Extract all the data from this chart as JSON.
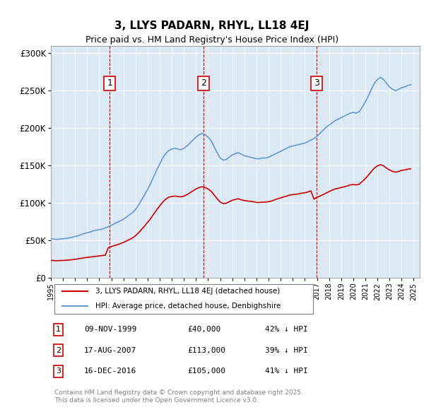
{
  "title": "3, LLYS PADARN, RHYL, LL18 4EJ",
  "subtitle": "Price paid vs. HM Land Registry's House Price Index (HPI)",
  "ylabel_ticks": [
    "£0",
    "£50K",
    "£100K",
    "£150K",
    "£200K",
    "£250K",
    "£300K"
  ],
  "ytick_values": [
    0,
    50000,
    100000,
    150000,
    200000,
    250000,
    300000
  ],
  "ylim": [
    0,
    310000
  ],
  "xlim_start": 1995.0,
  "xlim_end": 2025.5,
  "background_color": "#dce9f5",
  "plot_bg_color": "#dce9f5",
  "sale_color": "#cc0000",
  "hpi_color": "#6699cc",
  "vline_color": "#cc0000",
  "sale_points": [
    {
      "year": 1999.86,
      "price": 40000,
      "label": "1"
    },
    {
      "year": 2007.63,
      "price": 113000,
      "label": "2"
    },
    {
      "year": 2016.96,
      "price": 105000,
      "label": "3"
    }
  ],
  "vline_years": [
    1999.86,
    2007.63,
    2016.96
  ],
  "legend_sale": "3, LLYS PADARN, RHYL, LL18 4EJ (detached house)",
  "legend_hpi": "HPI: Average price, detached house, Denbighshire",
  "table_rows": [
    {
      "num": "1",
      "date": "09-NOV-1999",
      "price": "£40,000",
      "hpi": "42% ↓ HPI"
    },
    {
      "num": "2",
      "date": "17-AUG-2007",
      "price": "£113,000",
      "hpi": "39% ↓ HPI"
    },
    {
      "num": "3",
      "date": "16-DEC-2016",
      "price": "£105,000",
      "hpi": "41% ↓ HPI"
    }
  ],
  "footer": "Contains HM Land Registry data © Crown copyright and database right 2025.\nThis data is licensed under the Open Government Licence v3.0.",
  "hpi_data": {
    "years": [
      1995.0,
      1995.25,
      1995.5,
      1995.75,
      1996.0,
      1996.25,
      1996.5,
      1996.75,
      1997.0,
      1997.25,
      1997.5,
      1997.75,
      1998.0,
      1998.25,
      1998.5,
      1998.75,
      1999.0,
      1999.25,
      1999.5,
      1999.75,
      2000.0,
      2000.25,
      2000.5,
      2000.75,
      2001.0,
      2001.25,
      2001.5,
      2001.75,
      2002.0,
      2002.25,
      2002.5,
      2002.75,
      2003.0,
      2003.25,
      2003.5,
      2003.75,
      2004.0,
      2004.25,
      2004.5,
      2004.75,
      2005.0,
      2005.25,
      2005.5,
      2005.75,
      2006.0,
      2006.25,
      2006.5,
      2006.75,
      2007.0,
      2007.25,
      2007.5,
      2007.75,
      2008.0,
      2008.25,
      2008.5,
      2008.75,
      2009.0,
      2009.25,
      2009.5,
      2009.75,
      2010.0,
      2010.25,
      2010.5,
      2010.75,
      2011.0,
      2011.25,
      2011.5,
      2011.75,
      2012.0,
      2012.25,
      2012.5,
      2012.75,
      2013.0,
      2013.25,
      2013.5,
      2013.75,
      2014.0,
      2014.25,
      2014.5,
      2014.75,
      2015.0,
      2015.25,
      2015.5,
      2015.75,
      2016.0,
      2016.25,
      2016.5,
      2016.75,
      2017.0,
      2017.25,
      2017.5,
      2017.75,
      2018.0,
      2018.25,
      2018.5,
      2018.75,
      2019.0,
      2019.25,
      2019.5,
      2019.75,
      2020.0,
      2020.25,
      2020.5,
      2020.75,
      2021.0,
      2021.25,
      2021.5,
      2021.75,
      2022.0,
      2022.25,
      2022.5,
      2022.75,
      2023.0,
      2023.25,
      2023.5,
      2023.75,
      2024.0,
      2024.25,
      2024.5,
      2024.75
    ],
    "values": [
      52000,
      51500,
      51000,
      51500,
      52000,
      52500,
      53000,
      54000,
      55000,
      56000,
      57500,
      59000,
      60000,
      61000,
      62500,
      63500,
      64000,
      65000,
      66500,
      68000,
      70000,
      72000,
      74000,
      76000,
      78000,
      81000,
      84000,
      87000,
      91000,
      97000,
      104000,
      111000,
      118000,
      126000,
      135000,
      144000,
      152000,
      160000,
      166000,
      170000,
      172000,
      173000,
      172000,
      171000,
      173000,
      176000,
      180000,
      184000,
      188000,
      191000,
      193000,
      191000,
      188000,
      183000,
      175000,
      167000,
      160000,
      157000,
      158000,
      161000,
      164000,
      166000,
      167000,
      165000,
      163000,
      162000,
      161000,
      160000,
      159000,
      159000,
      160000,
      160000,
      161000,
      163000,
      165000,
      167000,
      169000,
      171000,
      173000,
      175000,
      176000,
      177000,
      178000,
      179000,
      180000,
      182000,
      184000,
      186000,
      189000,
      193000,
      197000,
      201000,
      204000,
      207000,
      210000,
      212000,
      214000,
      216000,
      218000,
      220000,
      221000,
      220000,
      222000,
      228000,
      235000,
      243000,
      252000,
      260000,
      265000,
      268000,
      265000,
      260000,
      255000,
      252000,
      250000,
      252000,
      254000,
      255000,
      257000,
      258000
    ]
  },
  "sale_hpi_data": {
    "years": [
      1995.0,
      1995.25,
      1995.5,
      1995.75,
      1996.0,
      1996.25,
      1996.5,
      1996.75,
      1997.0,
      1997.25,
      1997.5,
      1997.75,
      1998.0,
      1998.25,
      1998.5,
      1998.75,
      1999.0,
      1999.25,
      1999.5,
      1999.75,
      2000.0,
      2000.25,
      2000.5,
      2000.75,
      2001.0,
      2001.25,
      2001.5,
      2001.75,
      2002.0,
      2002.25,
      2002.5,
      2002.75,
      2003.0,
      2003.25,
      2003.5,
      2003.75,
      2004.0,
      2004.25,
      2004.5,
      2004.75,
      2005.0,
      2005.25,
      2005.5,
      2005.75,
      2006.0,
      2006.25,
      2006.5,
      2006.75,
      2007.0,
      2007.25,
      2007.5,
      2007.75,
      2008.0,
      2008.25,
      2008.5,
      2008.75,
      2009.0,
      2009.25,
      2009.5,
      2009.75,
      2010.0,
      2010.25,
      2010.5,
      2010.75,
      2011.0,
      2011.25,
      2011.5,
      2011.75,
      2012.0,
      2012.25,
      2012.5,
      2012.75,
      2013.0,
      2013.25,
      2013.5,
      2013.75,
      2014.0,
      2014.25,
      2014.5,
      2014.75,
      2015.0,
      2015.25,
      2015.5,
      2015.75,
      2016.0,
      2016.25,
      2016.5,
      2016.75,
      2017.0,
      2017.25,
      2017.5,
      2017.75,
      2018.0,
      2018.25,
      2018.5,
      2018.75,
      2019.0,
      2019.25,
      2019.5,
      2019.75,
      2020.0,
      2020.25,
      2020.5,
      2020.75,
      2021.0,
      2021.25,
      2021.5,
      2021.75,
      2022.0,
      2022.25,
      2022.5,
      2022.75,
      2023.0,
      2023.25,
      2023.5,
      2023.75,
      2024.0,
      2024.25,
      2024.5,
      2024.75
    ],
    "values": [
      23000,
      22800,
      22600,
      22800,
      23000,
      23200,
      23500,
      24000,
      24500,
      25000,
      25800,
      26500,
      27000,
      27500,
      28000,
      28500,
      29000,
      29500,
      30000,
      40000,
      41500,
      42800,
      44000,
      45500,
      47000,
      49000,
      51000,
      53000,
      56000,
      60000,
      64500,
      69000,
      74000,
      79000,
      85000,
      90500,
      96000,
      101000,
      105000,
      107500,
      108500,
      109000,
      108500,
      108000,
      109000,
      111000,
      113500,
      116000,
      118500,
      120500,
      121500,
      120500,
      118500,
      115500,
      110500,
      105500,
      101000,
      99000,
      99500,
      101500,
      103500,
      104500,
      105500,
      104000,
      103000,
      102500,
      102000,
      101500,
      100500,
      100500,
      101000,
      101000,
      101500,
      102500,
      104000,
      105500,
      106500,
      108000,
      109000,
      110500,
      111000,
      111500,
      112000,
      113000,
      113500,
      114500,
      116000,
      105000,
      107500,
      109000,
      111000,
      113000,
      115000,
      117000,
      118500,
      119500,
      120500,
      121500,
      122500,
      124000,
      124500,
      124000,
      125000,
      128500,
      132500,
      137000,
      142000,
      146500,
      149500,
      151000,
      149500,
      146500,
      144000,
      142000,
      141000,
      142000,
      143500,
      144000,
      145000,
      145500
    ]
  }
}
